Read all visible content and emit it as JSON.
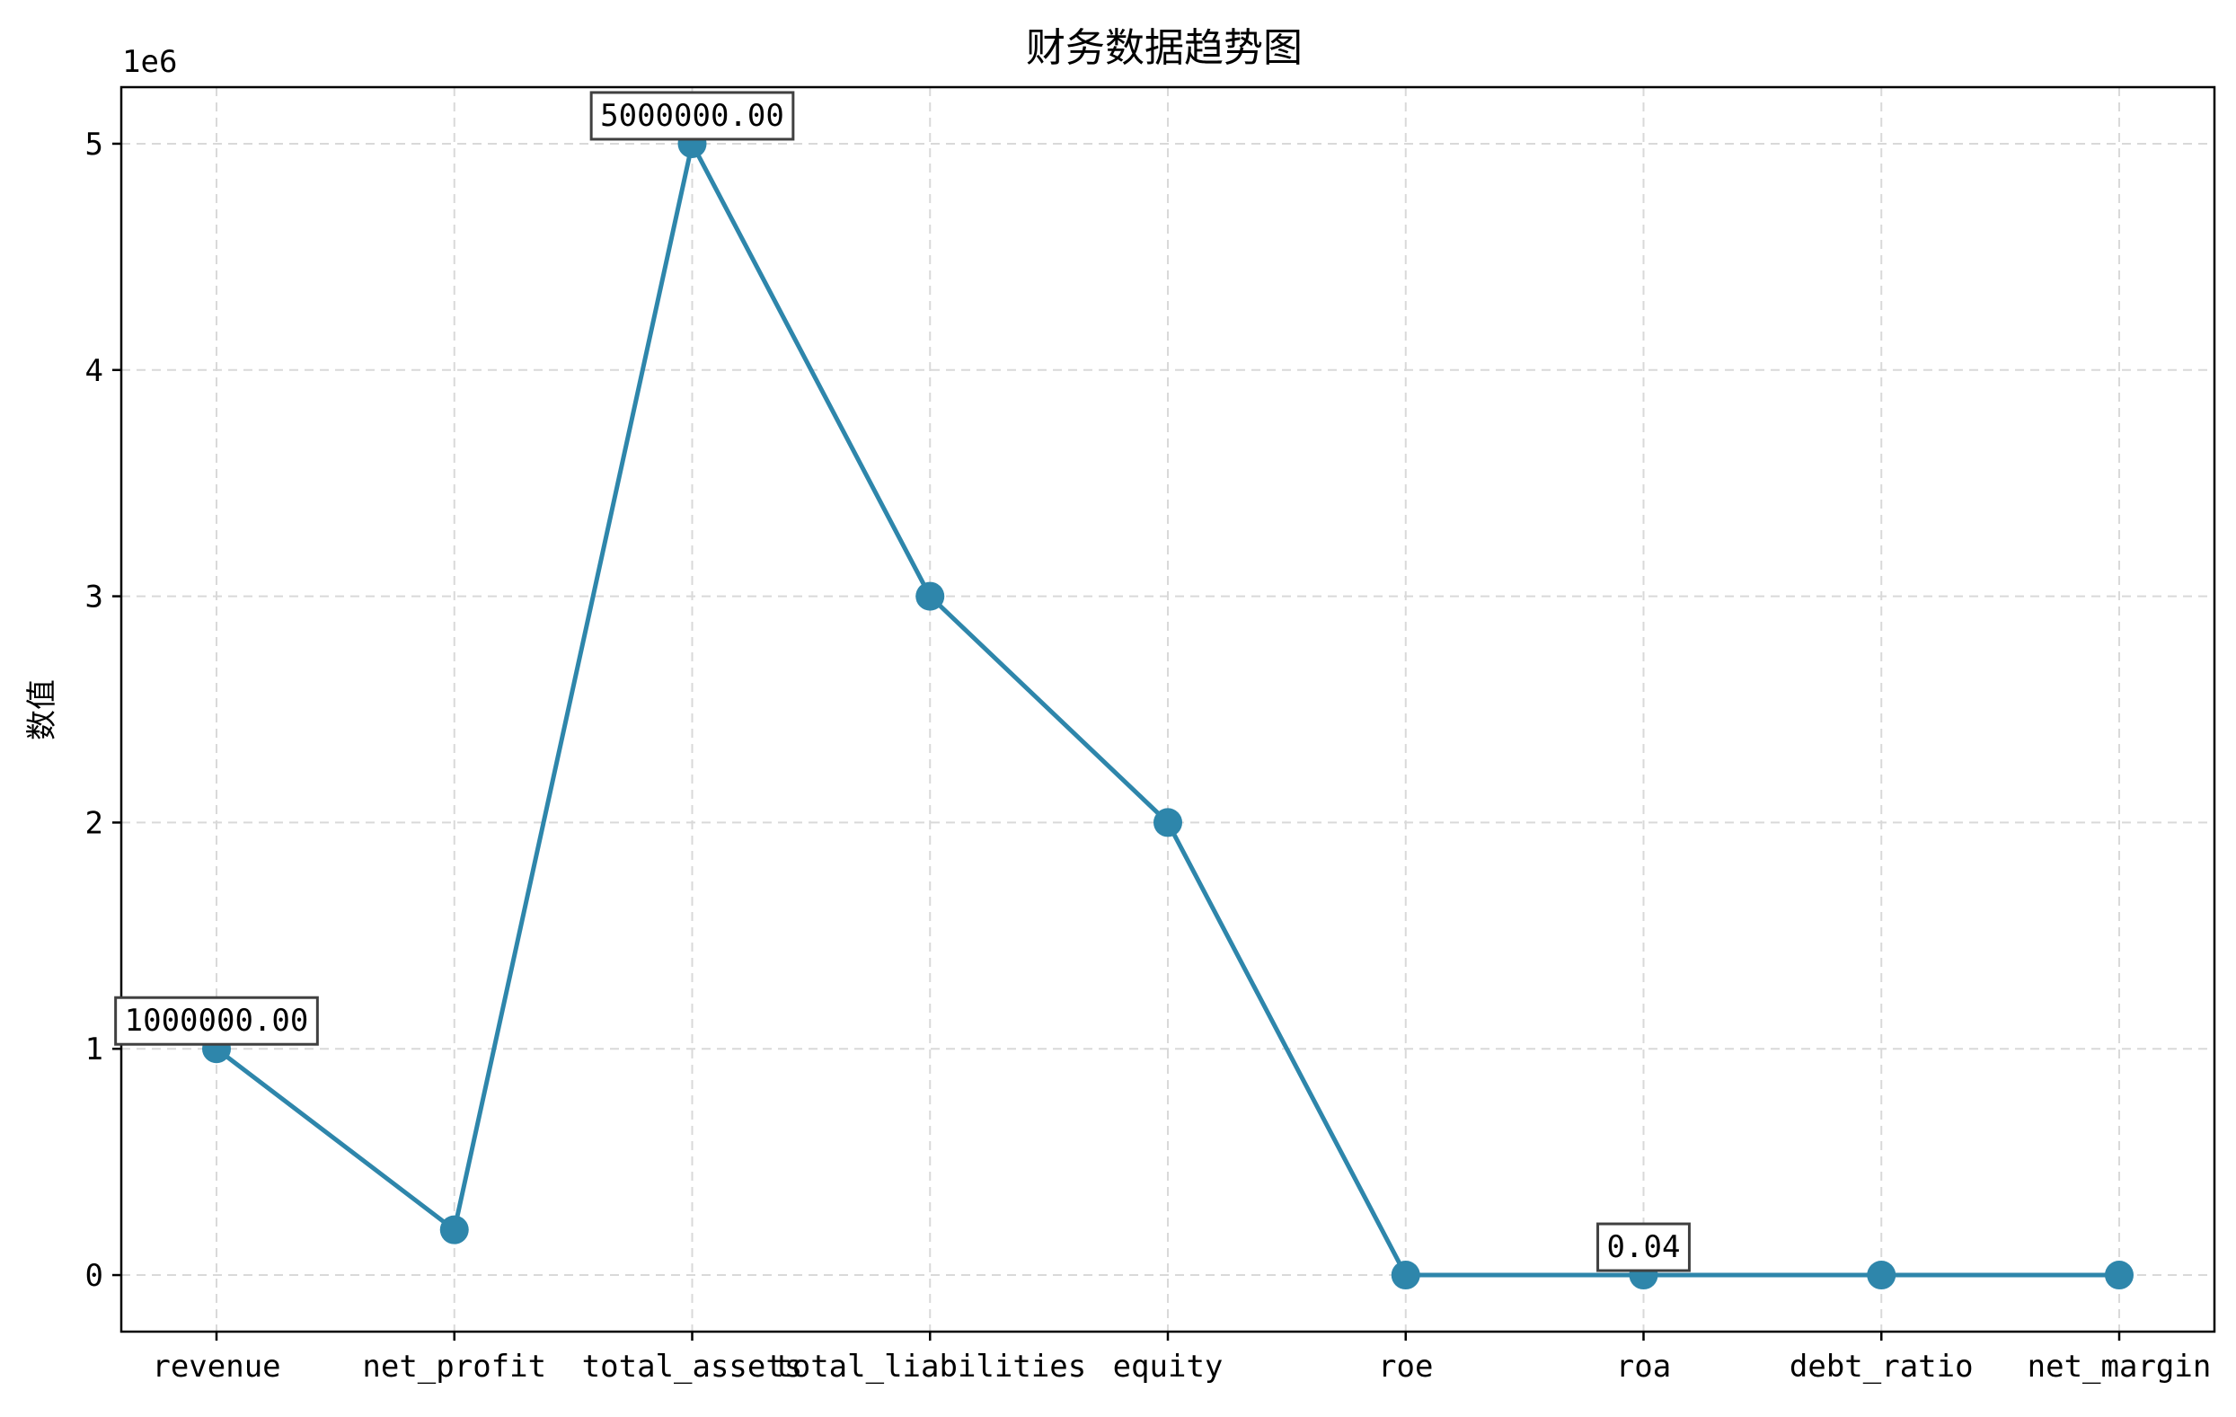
{
  "chart_data": {
    "type": "line",
    "title": "财务数据趋势图",
    "xlabel": "",
    "ylabel": "数值",
    "y_offset_label": "1e6",
    "categories": [
      "revenue",
      "net_profit",
      "total_assets",
      "total_liabilities",
      "equity",
      "roe",
      "roa",
      "debt_ratio",
      "net_margin"
    ],
    "values": [
      1000000,
      200000,
      5000000,
      3000000,
      2000000,
      0.1,
      0.04,
      0.6,
      0.2
    ],
    "ylim": [
      -250000,
      5250000
    ],
    "yticks": [
      0,
      1,
      2,
      3,
      4,
      5
    ],
    "annotations": [
      {
        "index": 0,
        "text": "1000000.00"
      },
      {
        "index": 2,
        "text": "5000000.00"
      },
      {
        "index": 6,
        "text": "0.04"
      }
    ],
    "grid": true,
    "legend": false,
    "color": "#2e86ab"
  }
}
